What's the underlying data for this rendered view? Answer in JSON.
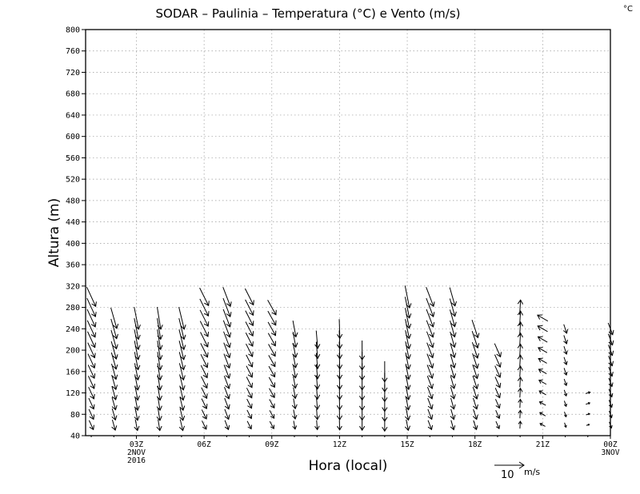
{
  "chart_data": {
    "type": "wind-vector",
    "title": "SODAR – Paulinia – Temperatura (°C) e Vento (m/s)",
    "corner_unit": "°C",
    "xlabel": "Hora (local)",
    "ylabel": "Altura (m)",
    "ylim": [
      40,
      800
    ],
    "y_ticks": [
      40,
      80,
      120,
      160,
      200,
      240,
      280,
      320,
      360,
      400,
      440,
      480,
      520,
      560,
      600,
      640,
      680,
      720,
      760,
      800
    ],
    "xlim": [
      0.75,
      24.0
    ],
    "x_ticks": [
      {
        "hour": 3,
        "lines": [
          "03Z",
          "2NOV",
          "2016"
        ]
      },
      {
        "hour": 6,
        "lines": [
          "06Z"
        ]
      },
      {
        "hour": 9,
        "lines": [
          "09Z"
        ]
      },
      {
        "hour": 12,
        "lines": [
          "12Z"
        ]
      },
      {
        "hour": 15,
        "lines": [
          "15Z"
        ]
      },
      {
        "hour": 18,
        "lines": [
          "18Z"
        ]
      },
      {
        "hour": 21,
        "lines": [
          "21Z"
        ]
      },
      {
        "hour": 24,
        "lines": [
          "00Z",
          "3NOV"
        ]
      }
    ],
    "grid": true,
    "reference_vector": {
      "speed": 10,
      "unit": "m/s",
      "label": "10",
      "unit_label": "m/s"
    },
    "heights": [
      60,
      80,
      100,
      120,
      140,
      160,
      180,
      200,
      220,
      240,
      260,
      280,
      300
    ],
    "columns": [
      {
        "hour": 1.0,
        "top": 300,
        "u": 3.0,
        "v": 6.5
      },
      {
        "hour": 2.0,
        "top": 260,
        "u": 2.0,
        "v": 7.0
      },
      {
        "hour": 3.0,
        "top": 260,
        "u": 1.5,
        "v": 7.5
      },
      {
        "hour": 4.0,
        "top": 260,
        "u": 1.2,
        "v": 7.5
      },
      {
        "hour": 5.0,
        "top": 260,
        "u": 1.8,
        "v": 7.5
      },
      {
        "hour": 6.0,
        "top": 300,
        "u": 3.0,
        "v": 6.0
      },
      {
        "hour": 7.0,
        "top": 300,
        "u": 2.5,
        "v": 6.5
      },
      {
        "hour": 8.0,
        "top": 300,
        "u": 2.8,
        "v": 5.5
      },
      {
        "hour": 9.0,
        "top": 280,
        "u": 2.8,
        "v": 5.0
      },
      {
        "hour": 10.0,
        "top": 240,
        "u": 1.0,
        "v": 5.5
      },
      {
        "hour": 11.0,
        "top": 220,
        "u": 0.5,
        "v": 6.0
      },
      {
        "hour": 12.0,
        "top": 240,
        "u": 0.2,
        "v": 6.5
      },
      {
        "hour": 13.0,
        "top": 200,
        "u": 0.0,
        "v": 6.5
      },
      {
        "hour": 14.0,
        "top": 160,
        "u": 0.0,
        "v": 7.0
      },
      {
        "hour": 15.0,
        "top": 300,
        "u": 1.5,
        "v": 7.5
      },
      {
        "hour": 16.0,
        "top": 300,
        "u": 2.5,
        "v": 6.5
      },
      {
        "hour": 17.0,
        "top": 360,
        "u": 2.0,
        "v": 7.0
      },
      {
        "hour": 18.0,
        "top": 240,
        "u": 2.0,
        "v": 6.0
      },
      {
        "hour": 19.0,
        "top": 200,
        "u": 2.0,
        "v": 4.5
      },
      {
        "hour": 20.0,
        "top": 280,
        "u": 0.3,
        "v": -5.0
      },
      {
        "hour": 21.0,
        "top": 260,
        "u": -3.5,
        "v": -2.0
      },
      {
        "hour": 22.0,
        "top": 240,
        "u": 1.0,
        "v": 3.0
      },
      {
        "hour": 23.0,
        "top": 120,
        "u": 1.5,
        "v": -0.5
      },
      {
        "hour": 24.0,
        "top": 240,
        "u": 1.5,
        "v": 4.0
      }
    ]
  }
}
